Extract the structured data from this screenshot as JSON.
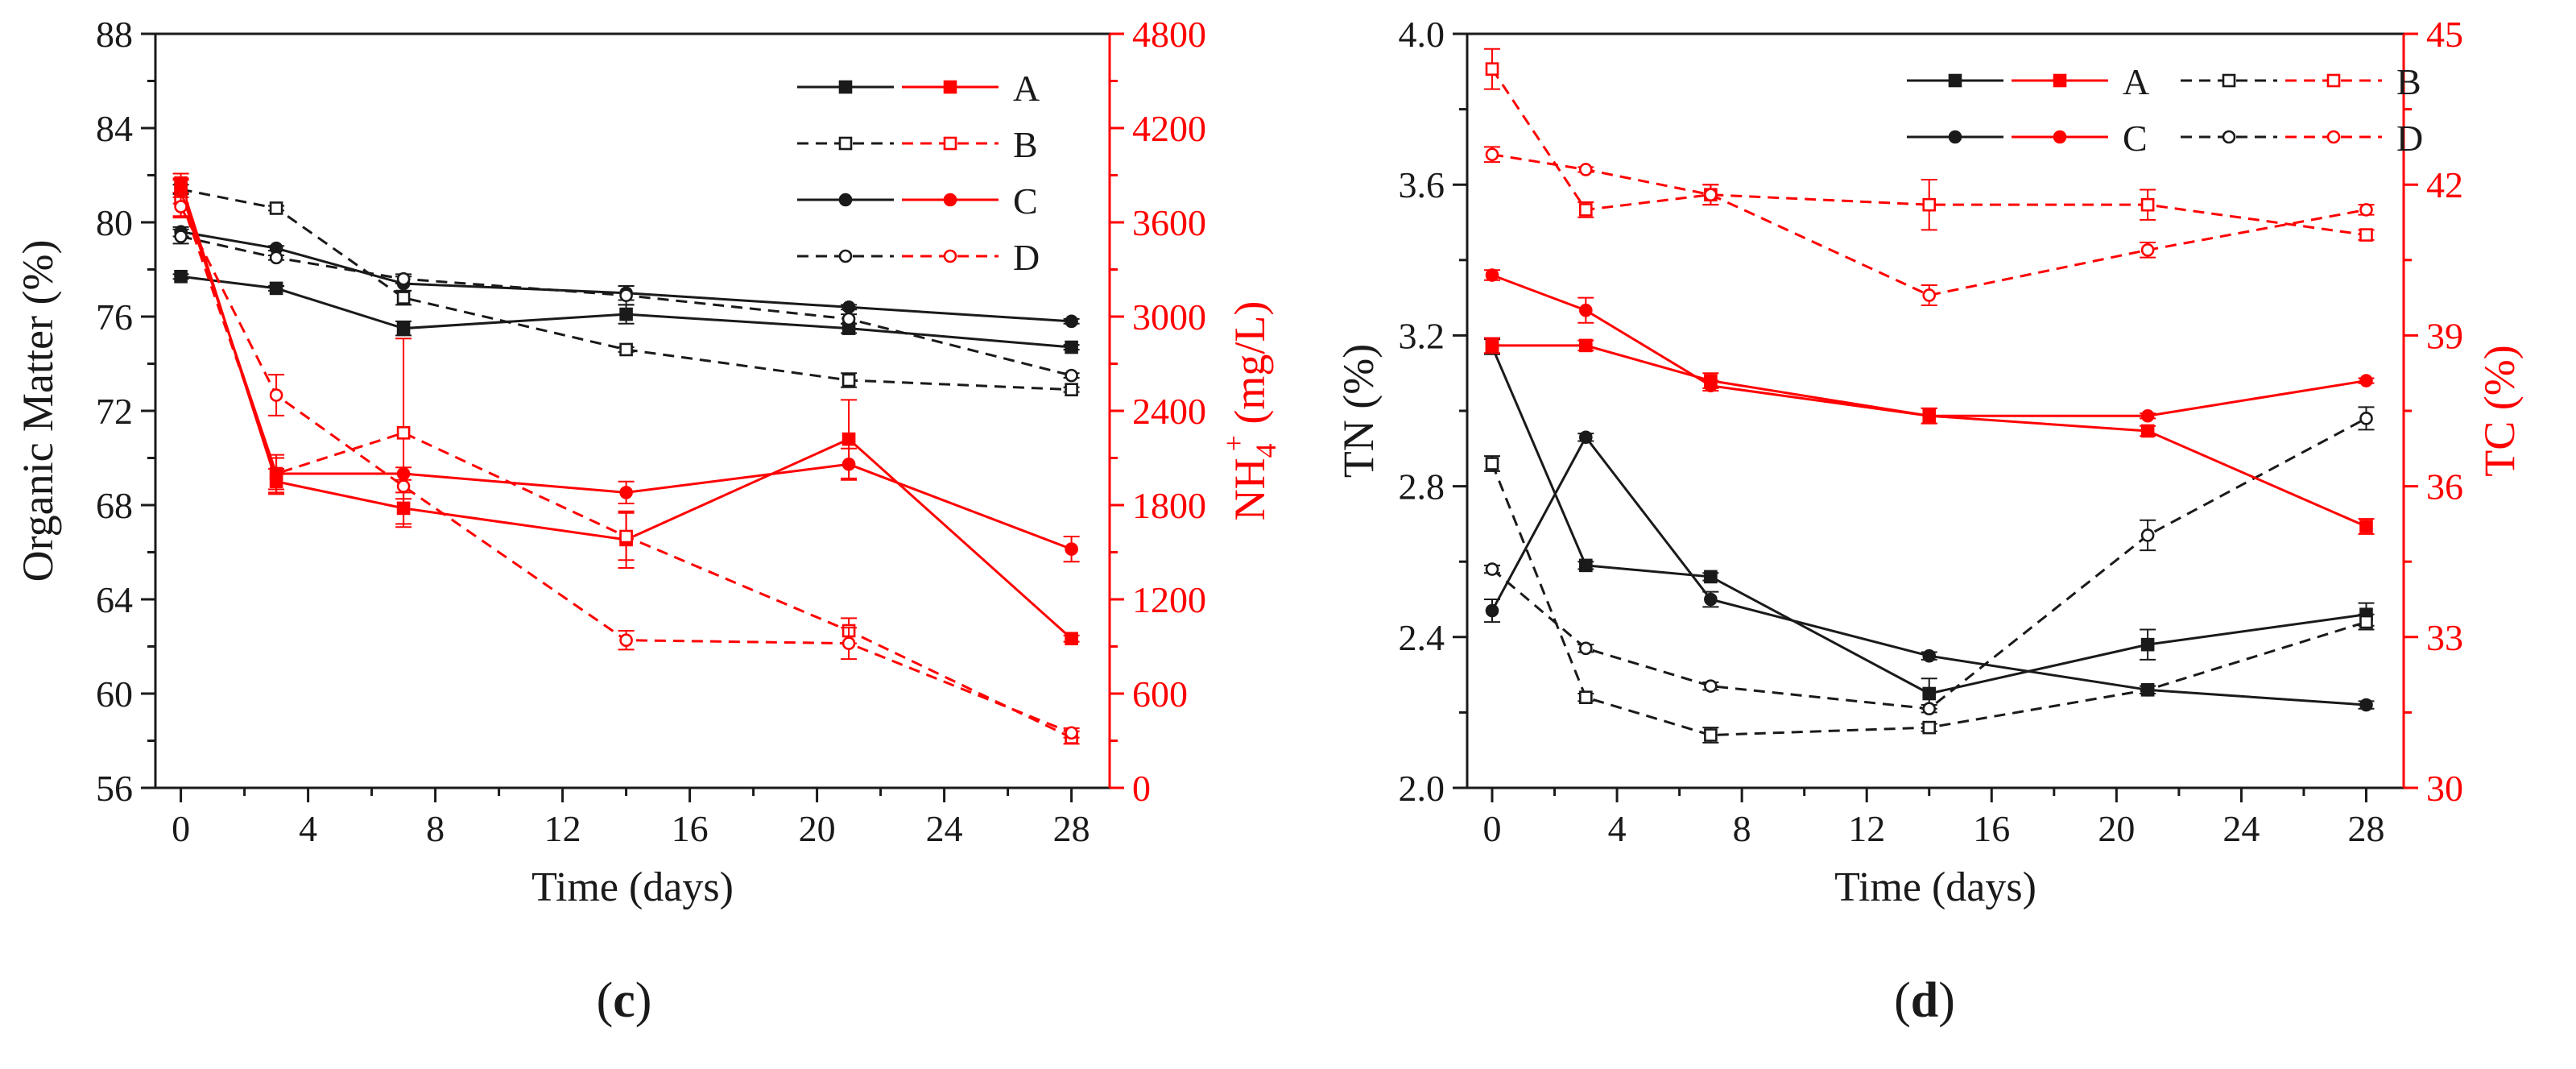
{
  "colors": {
    "left": "#1a1a1a",
    "right": "#ff0000"
  },
  "chart_data": [
    {
      "type": "line",
      "panel_label": "(c)",
      "panel_letter": "c",
      "x": [
        0,
        3,
        7,
        14,
        21,
        28
      ],
      "xlabel": "Time (days)",
      "xlim": [
        -0.8,
        29.2
      ],
      "xticks": [
        "0",
        "4",
        "8",
        "12",
        "16",
        "20",
        "24",
        "28"
      ],
      "ylabel_left": "Organic Matter (%)",
      "ylim_left": [
        56,
        88
      ],
      "yticks_left": [
        "56",
        "60",
        "64",
        "68",
        "72",
        "76",
        "80",
        "84",
        "88"
      ],
      "ylabel_right_main": "NH",
      "ylabel_right_sub": "4",
      "ylabel_right_sup": "+",
      "ylabel_right_tail": " (mg/L)",
      "ylim_right": [
        0,
        4800
      ],
      "yticks_right": [
        "0",
        "600",
        "1200",
        "1800",
        "2400",
        "3000",
        "3600",
        "4200",
        "4800"
      ],
      "legend": [
        "A",
        "B",
        "C",
        "D"
      ],
      "series": [
        {
          "name": "A",
          "axis": "left",
          "marker": "square",
          "filled": true,
          "dashed": false,
          "values": [
            77.7,
            77.2,
            75.5,
            76.1,
            75.5,
            74.7
          ],
          "errors": [
            0.1,
            0.1,
            0.3,
            0.4,
            0.2,
            0.1
          ]
        },
        {
          "name": "B",
          "axis": "left",
          "marker": "square",
          "filled": false,
          "dashed": true,
          "values": [
            81.4,
            80.6,
            76.8,
            74.6,
            73.3,
            72.9
          ],
          "errors": [
            0.2,
            0.1,
            0.3,
            0.1,
            0.3,
            0.1
          ]
        },
        {
          "name": "C",
          "axis": "left",
          "marker": "circle",
          "filled": true,
          "dashed": false,
          "values": [
            79.6,
            78.9,
            77.4,
            77.0,
            76.4,
            75.8
          ],
          "errors": [
            0.2,
            0.1,
            0.3,
            0.3,
            0.1,
            0.1
          ]
        },
        {
          "name": "D",
          "axis": "left",
          "marker": "circle",
          "filled": false,
          "dashed": true,
          "values": [
            79.4,
            78.5,
            77.6,
            76.9,
            75.9,
            73.5
          ],
          "errors": [
            0.3,
            0.1,
            0.2,
            0.4,
            0.2,
            0.1
          ]
        },
        {
          "name": "A",
          "axis": "right",
          "marker": "square",
          "filled": true,
          "dashed": false,
          "values": [
            3850,
            1950,
            1780,
            1580,
            2220,
            950
          ],
          "errors": [
            60,
            80,
            100,
            180,
            250,
            20
          ]
        },
        {
          "name": "B",
          "axis": "right",
          "marker": "square",
          "filled": false,
          "dashed": true,
          "values": [
            3750,
            2000,
            2260,
            1600,
            1000,
            320
          ],
          "errors": [
            120,
            100,
            600,
            150,
            80,
            40
          ]
        },
        {
          "name": "C",
          "axis": "right",
          "marker": "circle",
          "filled": true,
          "dashed": false,
          "values": [
            3800,
            2000,
            2000,
            1880,
            2060,
            1520
          ],
          "errors": [
            80,
            120,
            40,
            70,
            100,
            80
          ]
        },
        {
          "name": "D",
          "axis": "right",
          "marker": "circle",
          "filled": false,
          "dashed": true,
          "values": [
            3700,
            2500,
            1920,
            940,
            920,
            350
          ],
          "errors": [
            60,
            130,
            80,
            60,
            100,
            30
          ]
        }
      ]
    },
    {
      "type": "line",
      "panel_label": "(d)",
      "panel_letter": "d",
      "x": [
        0,
        3,
        7,
        14,
        21,
        28
      ],
      "xlabel": "Time (days)",
      "xlim": [
        -0.8,
        29.2
      ],
      "xticks": [
        "0",
        "4",
        "8",
        "12",
        "16",
        "20",
        "24",
        "28"
      ],
      "ylabel_left": "TN (%)",
      "ylim_left": [
        2.0,
        4.0
      ],
      "yticks_left": [
        "2.0",
        "2.4",
        "2.8",
        "3.2",
        "3.6",
        "4.0"
      ],
      "ylabel_right": "TC (%)",
      "ylim_right": [
        30,
        45
      ],
      "yticks_right": [
        "30",
        "33",
        "36",
        "39",
        "42",
        "45"
      ],
      "legend": [
        "A",
        "B",
        "C",
        "D"
      ],
      "series": [
        {
          "name": "A",
          "axis": "left",
          "marker": "square",
          "filled": true,
          "dashed": false,
          "values": [
            3.17,
            2.59,
            2.56,
            2.25,
            2.38,
            2.46
          ],
          "errors": [
            0.02,
            0.01,
            0.01,
            0.04,
            0.04,
            0.03
          ]
        },
        {
          "name": "B",
          "axis": "left",
          "marker": "square",
          "filled": false,
          "dashed": true,
          "values": [
            2.86,
            2.24,
            2.14,
            2.16,
            2.26,
            2.44
          ],
          "errors": [
            0.02,
            0.01,
            0.02,
            0.01,
            0.01,
            0.02
          ]
        },
        {
          "name": "C",
          "axis": "left",
          "marker": "circle",
          "filled": true,
          "dashed": false,
          "values": [
            2.47,
            2.93,
            2.5,
            2.35,
            2.26,
            2.22
          ],
          "errors": [
            0.03,
            0.01,
            0.02,
            0.01,
            0.01,
            0.01
          ]
        },
        {
          "name": "D",
          "axis": "left",
          "marker": "circle",
          "filled": false,
          "dashed": true,
          "values": [
            2.58,
            2.37,
            2.27,
            2.21,
            2.67,
            2.98
          ],
          "errors": [
            0.01,
            0.01,
            0.01,
            0.01,
            0.04,
            0.03
          ]
        },
        {
          "name": "A",
          "axis": "right",
          "marker": "square",
          "filled": true,
          "dashed": false,
          "values": [
            38.8,
            38.8,
            38.1,
            37.4,
            37.1,
            35.2
          ],
          "errors": [
            0.15,
            0.1,
            0.15,
            0.15,
            0.1,
            0.15
          ]
        },
        {
          "name": "B",
          "axis": "right",
          "marker": "square",
          "filled": false,
          "dashed": true,
          "values": [
            44.3,
            41.5,
            41.8,
            41.6,
            41.6,
            41.0
          ],
          "errors": [
            0.4,
            0.15,
            0.2,
            0.5,
            0.3,
            0.1
          ]
        },
        {
          "name": "C",
          "axis": "right",
          "marker": "circle",
          "filled": true,
          "dashed": false,
          "values": [
            40.2,
            39.5,
            38.0,
            37.4,
            37.4,
            38.1
          ],
          "errors": [
            0.1,
            0.25,
            0.1,
            0.15,
            0.05,
            0.05
          ]
        },
        {
          "name": "D",
          "axis": "right",
          "marker": "circle",
          "filled": false,
          "dashed": true,
          "values": [
            42.6,
            42.3,
            41.8,
            39.8,
            40.7,
            41.5
          ],
          "errors": [
            0.15,
            0.05,
            0.2,
            0.2,
            0.15,
            0.1
          ]
        }
      ]
    }
  ]
}
